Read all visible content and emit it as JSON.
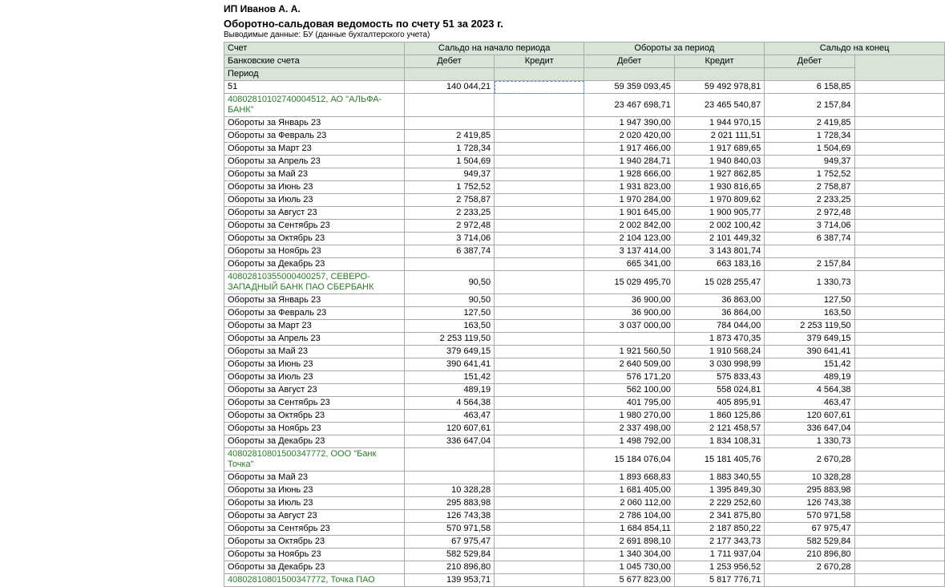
{
  "company": "ИП Иванов А. А.",
  "title": "Оборотно-сальдовая ведомость по счету 51 за 2023 г.",
  "subtitle": "Выводимые данные: БУ (данные бухгалтерского учета)",
  "headers": {
    "account": "Счет",
    "bank_accounts": "Банковские счета",
    "period": "Период",
    "start_balance": "Сальдо на начало периода",
    "turnover": "Обороты за период",
    "end_balance": "Сальдо на конец",
    "debit": "Дебет",
    "credit": "Кредит"
  },
  "rows": [
    {
      "label": "51",
      "d1": "140 044,21",
      "c1": "",
      "d2": "59 359 093,45",
      "c2": "59 492 978,81",
      "d3": "6 158,85",
      "sel": true
    },
    {
      "label": "40802810102740004512, АО \"АЛЬФА-БАНК\"",
      "d1": "",
      "c1": "",
      "d2": "23 467 698,71",
      "c2": "23 465 540,87",
      "d3": "2 157,84",
      "wrap": true,
      "green": true
    },
    {
      "label": "Обороты за Январь 23",
      "d1": "",
      "c1": "",
      "d2": "1 947 390,00",
      "c2": "1 944 970,15",
      "d3": "2 419,85"
    },
    {
      "label": "Обороты за Февраль 23",
      "d1": "2 419,85",
      "c1": "",
      "d2": "2 020 420,00",
      "c2": "2 021 111,51",
      "d3": "1 728,34"
    },
    {
      "label": "Обороты за Март 23",
      "d1": "1 728,34",
      "c1": "",
      "d2": "1 917 466,00",
      "c2": "1 917 689,65",
      "d3": "1 504,69"
    },
    {
      "label": "Обороты за Апрель 23",
      "d1": "1 504,69",
      "c1": "",
      "d2": "1 940 284,71",
      "c2": "1 940 840,03",
      "d3": "949,37"
    },
    {
      "label": "Обороты за Май 23",
      "d1": "949,37",
      "c1": "",
      "d2": "1 928 666,00",
      "c2": "1 927 862,85",
      "d3": "1 752,52"
    },
    {
      "label": "Обороты за Июнь 23",
      "d1": "1 752,52",
      "c1": "",
      "d2": "1 931 823,00",
      "c2": "1 930 816,65",
      "d3": "2 758,87"
    },
    {
      "label": "Обороты за Июль 23",
      "d1": "2 758,87",
      "c1": "",
      "d2": "1 970 284,00",
      "c2": "1 970 809,62",
      "d3": "2 233,25"
    },
    {
      "label": "Обороты за Август 23",
      "d1": "2 233,25",
      "c1": "",
      "d2": "1 901 645,00",
      "c2": "1 900 905,77",
      "d3": "2 972,48"
    },
    {
      "label": "Обороты за Сентябрь 23",
      "d1": "2 972,48",
      "c1": "",
      "d2": "2 002 842,00",
      "c2": "2 002 100,42",
      "d3": "3 714,06"
    },
    {
      "label": "Обороты за Октябрь 23",
      "d1": "3 714,06",
      "c1": "",
      "d2": "2 104 123,00",
      "c2": "2 101 449,32",
      "d3": "6 387,74"
    },
    {
      "label": "Обороты за Ноябрь 23",
      "d1": "6 387,74",
      "c1": "",
      "d2": "3 137 414,00",
      "c2": "3 143 801,74",
      "d3": ""
    },
    {
      "label": "Обороты за Декабрь 23",
      "d1": "",
      "c1": "",
      "d2": "665 341,00",
      "c2": "663 183,16",
      "d3": "2 157,84"
    },
    {
      "label": "40802810355000400257, СЕВЕРО-ЗАПАДНЫЙ БАНК ПАО СБЕРБАНК",
      "d1": "90,50",
      "c1": "",
      "d2": "15 029 495,70",
      "c2": "15 028 255,47",
      "d3": "1 330,73",
      "wrap": true,
      "green": true
    },
    {
      "label": "Обороты за Январь 23",
      "d1": "90,50",
      "c1": "",
      "d2": "36 900,00",
      "c2": "36 863,00",
      "d3": "127,50"
    },
    {
      "label": "Обороты за Февраль 23",
      "d1": "127,50",
      "c1": "",
      "d2": "36 900,00",
      "c2": "36 864,00",
      "d3": "163,50"
    },
    {
      "label": "Обороты за Март 23",
      "d1": "163,50",
      "c1": "",
      "d2": "3 037 000,00",
      "c2": "784 044,00",
      "d3": "2 253 119,50"
    },
    {
      "label": "Обороты за Апрель 23",
      "d1": "2 253 119,50",
      "c1": "",
      "d2": "",
      "c2": "1 873 470,35",
      "d3": "379 649,15"
    },
    {
      "label": "Обороты за Май 23",
      "d1": "379 649,15",
      "c1": "",
      "d2": "1 921 560,50",
      "c2": "1 910 568,24",
      "d3": "390 641,41"
    },
    {
      "label": "Обороты за Июнь 23",
      "d1": "390 641,41",
      "c1": "",
      "d2": "2 640 509,00",
      "c2": "3 030 998,99",
      "d3": "151,42"
    },
    {
      "label": "Обороты за Июль 23",
      "d1": "151,42",
      "c1": "",
      "d2": "576 171,20",
      "c2": "575 833,43",
      "d3": "489,19"
    },
    {
      "label": "Обороты за Август 23",
      "d1": "489,19",
      "c1": "",
      "d2": "562 100,00",
      "c2": "558 024,81",
      "d3": "4 564,38"
    },
    {
      "label": "Обороты за Сентябрь 23",
      "d1": "4 564,38",
      "c1": "",
      "d2": "401 795,00",
      "c2": "405 895,91",
      "d3": "463,47"
    },
    {
      "label": "Обороты за Октябрь 23",
      "d1": "463,47",
      "c1": "",
      "d2": "1 980 270,00",
      "c2": "1 860 125,86",
      "d3": "120 607,61"
    },
    {
      "label": "Обороты за Ноябрь 23",
      "d1": "120 607,61",
      "c1": "",
      "d2": "2 337 498,00",
      "c2": "2 121 458,57",
      "d3": "336 647,04"
    },
    {
      "label": "Обороты за Декабрь 23",
      "d1": "336 647,04",
      "c1": "",
      "d2": "1 498 792,00",
      "c2": "1 834 108,31",
      "d3": "1 330,73"
    },
    {
      "label": "40802810801500347772, ООО \"Банк Точка\"",
      "d1": "",
      "c1": "",
      "d2": "15 184 076,04",
      "c2": "15 181 405,76",
      "d3": "2 670,28",
      "wrap": true,
      "green": true
    },
    {
      "label": "Обороты за Май 23",
      "d1": "",
      "c1": "",
      "d2": "1 893 668,83",
      "c2": "1 883 340,55",
      "d3": "10 328,28"
    },
    {
      "label": "Обороты за Июнь 23",
      "d1": "10 328,28",
      "c1": "",
      "d2": "1 681 405,00",
      "c2": "1 395 849,30",
      "d3": "295 883,98"
    },
    {
      "label": "Обороты за Июль 23",
      "d1": "295 883,98",
      "c1": "",
      "d2": "2 060 112,00",
      "c2": "2 229 252,60",
      "d3": "126 743,38"
    },
    {
      "label": "Обороты за Август 23",
      "d1": "126 743,38",
      "c1": "",
      "d2": "2 786 104,00",
      "c2": "2 341 875,80",
      "d3": "570 971,58"
    },
    {
      "label": "Обороты за Сентябрь 23",
      "d1": "570 971,58",
      "c1": "",
      "d2": "1 684 854,11",
      "c2": "2 187 850,22",
      "d3": "67 975,47"
    },
    {
      "label": "Обороты за Октябрь 23",
      "d1": "67 975,47",
      "c1": "",
      "d2": "2 691 898,10",
      "c2": "2 177 343,73",
      "d3": "582 529,84"
    },
    {
      "label": "Обороты за Ноябрь 23",
      "d1": "582 529,84",
      "c1": "",
      "d2": "1 340 304,00",
      "c2": "1 711 937,04",
      "d3": "210 896,80"
    },
    {
      "label": "Обороты за Декабрь 23",
      "d1": "210 896,80",
      "c1": "",
      "d2": "1 045 730,00",
      "c2": "1 253 956,52",
      "d3": "2 670,28"
    },
    {
      "label": "40802810801500347772, Точка ПАО",
      "d1": "139 953,71",
      "c1": "",
      "d2": "5 677 823,00",
      "c2": "5 817 776,71",
      "d3": "",
      "wrap": true,
      "green": true
    }
  ]
}
